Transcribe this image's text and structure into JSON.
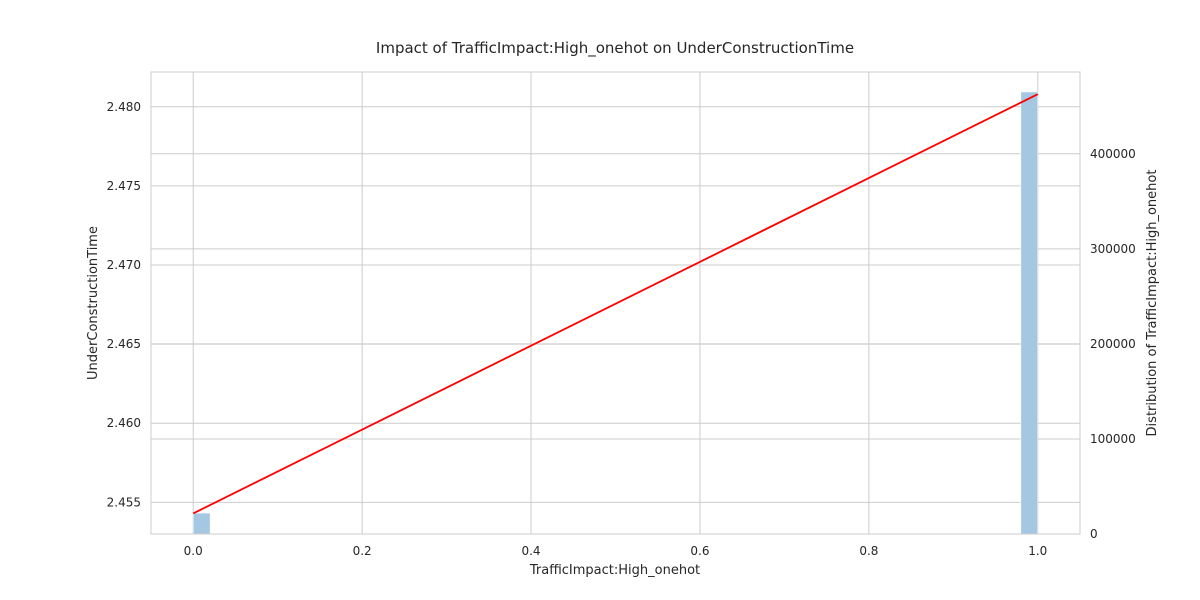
{
  "chart_data": {
    "type": "bar+line",
    "title": "Impact of TrafficImpact:High_onehot on UnderConstructionTime",
    "xlabel": "TrafficImpact:High_onehot",
    "ylabel": "UnderConstructionTime",
    "y2label": "Distribution of TrafficImpact:High_onehot",
    "xlim": [
      -0.05,
      1.05
    ],
    "ylim": [
      2.453,
      2.4822
    ],
    "y2lim": [
      0,
      486000
    ],
    "x_ticks": [
      0.0,
      0.2,
      0.4,
      0.6,
      0.8,
      1.0
    ],
    "x_tick_labels": [
      "0.0",
      "0.2",
      "0.4",
      "0.6",
      "0.8",
      "1.0"
    ],
    "y_ticks": [
      2.455,
      2.46,
      2.465,
      2.47,
      2.475,
      2.48
    ],
    "y_tick_labels": [
      "2.455",
      "2.460",
      "2.465",
      "2.470",
      "2.475",
      "2.480"
    ],
    "y2_ticks": [
      0,
      100000,
      200000,
      300000,
      400000
    ],
    "y2_tick_labels": [
      "0",
      "100000",
      "200000",
      "300000",
      "400000"
    ],
    "grid": true,
    "histogram": {
      "bins": [
        {
          "x0": 0.0,
          "x1": 0.02,
          "count": 22000
        },
        {
          "x0": 0.98,
          "x1": 1.0,
          "count": 465000
        }
      ],
      "color": "#a4c8e1"
    },
    "line": {
      "x": [
        0.0,
        1.0
      ],
      "y": [
        2.4543,
        2.4808
      ],
      "color": "#ff0000"
    }
  }
}
